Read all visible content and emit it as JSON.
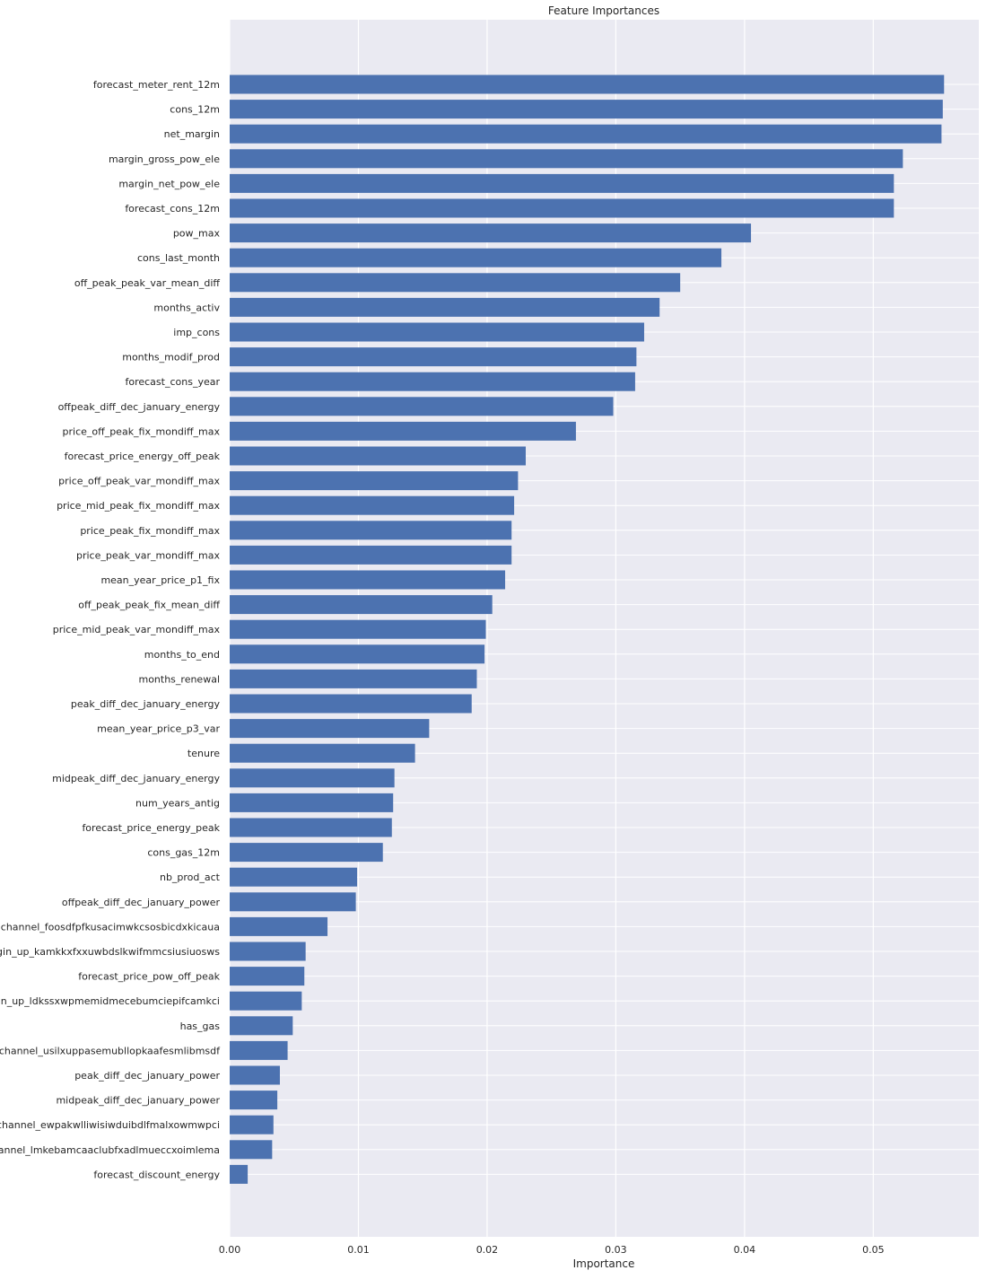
{
  "chart_data": {
    "type": "bar",
    "orientation": "horizontal",
    "title": "Feature Importances",
    "xlabel": "Importance",
    "ylabel": "",
    "xlim": [
      0.0,
      0.0582
    ],
    "xticks": [
      0.0,
      0.01,
      0.02,
      0.03,
      0.04,
      0.05
    ],
    "xtick_labels": [
      "0.00",
      "0.01",
      "0.02",
      "0.03",
      "0.04",
      "0.05"
    ],
    "grid": true,
    "bar_color": "#4c72b0",
    "plot_background": "#eaeaf2",
    "grid_color": "#ffffff",
    "categories": [
      "forecast_meter_rent_12m",
      "cons_12m",
      "net_margin",
      "margin_gross_pow_ele",
      "margin_net_pow_ele",
      "forecast_cons_12m",
      "pow_max",
      "cons_last_month",
      "off_peak_peak_var_mean_diff",
      "months_activ",
      "imp_cons",
      "months_modif_prod",
      "forecast_cons_year",
      "offpeak_diff_dec_january_energy",
      "price_off_peak_fix_mondiff_max",
      "forecast_price_energy_off_peak",
      "price_off_peak_var_mondiff_max",
      "price_mid_peak_fix_mondiff_max",
      "price_peak_fix_mondiff_max",
      "price_peak_var_mondiff_max",
      "mean_year_price_p1_fix",
      "off_peak_peak_fix_mean_diff",
      "price_mid_peak_var_mondiff_max",
      "months_to_end",
      "months_renewal",
      "peak_diff_dec_january_energy",
      "mean_year_price_p3_var",
      "tenure",
      "midpeak_diff_dec_january_energy",
      "num_years_antig",
      "forecast_price_energy_peak",
      "cons_gas_12m",
      "nb_prod_act",
      "offpeak_diff_dec_january_power",
      "channel_foosdfpfkusacimwkcsosbicdxkicaua",
      "origin_up_kamkkxfxxuwbdslkwifmmcsiusiuosws",
      "forecast_price_pow_off_peak",
      "origin_up_ldkssxwpmemidmecebumciepifcamkci",
      "has_gas",
      "channel_usilxuppasemubllopkaafesmlibmsdf",
      "peak_diff_dec_january_power",
      "midpeak_diff_dec_january_power",
      "channel_ewpakwlliwisiwduibdlfmalxowmwpci",
      "channel_lmkebamcaaclubfxadlmueccxoimlema",
      "forecast_discount_energy"
    ],
    "values": [
      0.0555,
      0.0554,
      0.0553,
      0.0523,
      0.0516,
      0.0516,
      0.0405,
      0.0382,
      0.035,
      0.0334,
      0.0322,
      0.0316,
      0.0315,
      0.0298,
      0.0269,
      0.023,
      0.0224,
      0.0221,
      0.0219,
      0.0219,
      0.0214,
      0.0204,
      0.0199,
      0.0198,
      0.0192,
      0.0188,
      0.0155,
      0.0144,
      0.0128,
      0.0127,
      0.0126,
      0.0119,
      0.0099,
      0.0098,
      0.0076,
      0.0059,
      0.0058,
      0.0056,
      0.0049,
      0.0045,
      0.0039,
      0.0037,
      0.0034,
      0.0033,
      0.0014
    ]
  }
}
